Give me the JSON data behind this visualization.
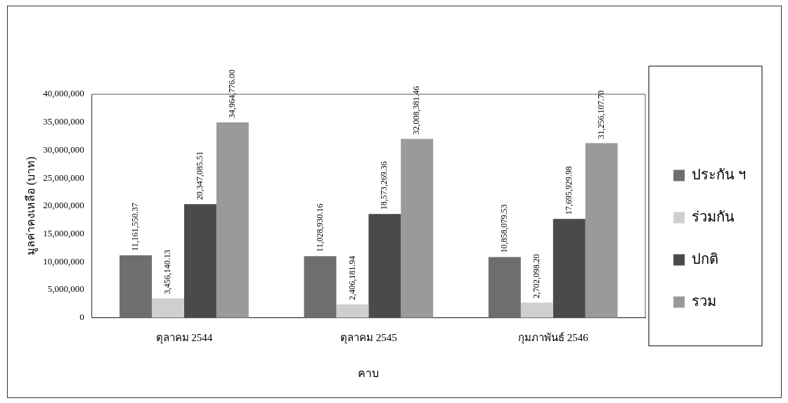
{
  "chart_data": {
    "type": "bar",
    "xlabel": "คาบ",
    "ylabel": "มูลค่าคงเหลือ (บาท)",
    "categories": [
      "ตุลาคม 2544",
      "ตุลาคม 2545",
      "กุมภาพันธ์ 2546"
    ],
    "series": [
      {
        "name": "ประกัน ฯ",
        "color": "#6e6e6e",
        "values": [
          11161550.37,
          11028930.16,
          10858079.53
        ],
        "value_labels": [
          "11,161,550.37",
          "11,028,930.16",
          "10,858,079.53"
        ]
      },
      {
        "name": "ร่วมกัน",
        "color": "#cfcfcf",
        "values": [
          3456140.13,
          2406181.94,
          2702098.2
        ],
        "value_labels": [
          "3,456,140.13",
          "2,406,181.94",
          "2,702,098.20"
        ]
      },
      {
        "name": "ปกติ",
        "color": "#4a4a4a",
        "values": [
          20347085.51,
          18573269.36,
          17695929.98
        ],
        "value_labels": [
          "20,347,085.51",
          "18,573,269.36",
          "17,695,929.98"
        ]
      },
      {
        "name": "รวม",
        "color": "#9a9a9a",
        "values": [
          34964776.0,
          32008381.46,
          31256107.7
        ],
        "value_labels": [
          "34,964,776.00",
          "32,008,381.46",
          "31,256,107.70"
        ]
      }
    ],
    "ylim": [
      0,
      40000000
    ],
    "yticks": [
      {
        "value": 0,
        "label": "0"
      },
      {
        "value": 5000000,
        "label": "5,000,000"
      },
      {
        "value": 10000000,
        "label": "10,000,000"
      },
      {
        "value": 15000000,
        "label": "15,000,000"
      },
      {
        "value": 20000000,
        "label": "20,000,000"
      },
      {
        "value": 25000000,
        "label": "25,000,000"
      },
      {
        "value": 30000000,
        "label": "30,000,000"
      },
      {
        "value": 35000000,
        "label": "35,000,000"
      },
      {
        "value": 40000000,
        "label": "40,000,000"
      }
    ],
    "grid": false,
    "legend": "right"
  }
}
